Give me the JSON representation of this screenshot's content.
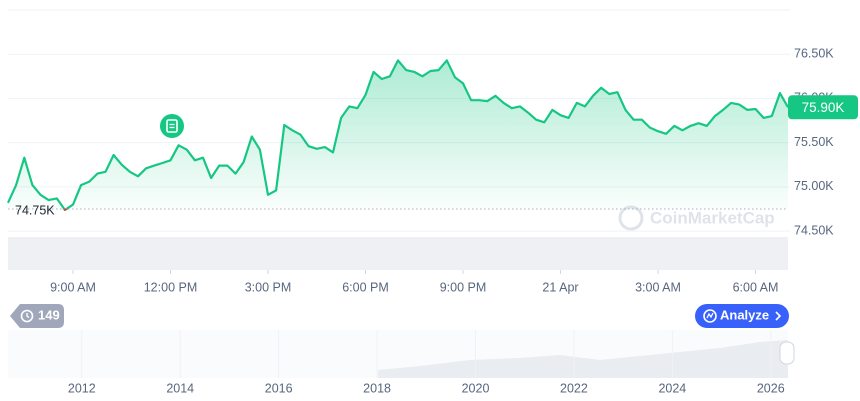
{
  "chart_data": {
    "type": "line",
    "color": "#16c784",
    "negative_color": "#ea3943",
    "grid": true,
    "xlim": [
      7,
      31
    ],
    "xticks": [
      {
        "value": 9,
        "label": "9:00 AM"
      },
      {
        "value": 12,
        "label": "12:00 PM"
      },
      {
        "value": 15,
        "label": "3:00 PM"
      },
      {
        "value": 18,
        "label": "6:00 PM"
      },
      {
        "value": 21,
        "label": "9:00 PM"
      },
      {
        "value": 24,
        "label": "21 Apr"
      },
      {
        "value": 27,
        "label": "3:00 AM"
      },
      {
        "value": 30,
        "label": "6:00 AM"
      }
    ],
    "ylim": [
      74060,
      77000
    ],
    "yticks": [
      {
        "value": 74500,
        "label": "74.50K"
      },
      {
        "value": 75000,
        "label": "75.00K"
      },
      {
        "value": 75500,
        "label": "75.50K"
      },
      {
        "value": 76000,
        "label": "76.00K"
      },
      {
        "value": 76500,
        "label": "76.50K"
      }
    ],
    "x": [
      7,
      7.25,
      7.5,
      7.75,
      8,
      8.25,
      8.5,
      8.75,
      9,
      9.25,
      9.5,
      9.75,
      10,
      10.25,
      10.5,
      10.75,
      11,
      11.25,
      11.5,
      11.75,
      12,
      12.25,
      12.5,
      12.75,
      13,
      13.25,
      13.5,
      13.75,
      14,
      14.25,
      14.5,
      14.75,
      15,
      15.25,
      15.5,
      15.75,
      16,
      16.25,
      16.5,
      16.75,
      17,
      17.25,
      17.5,
      17.75,
      18,
      18.25,
      18.5,
      18.75,
      19,
      19.25,
      19.5,
      19.75,
      20,
      20.25,
      20.5,
      20.75,
      21,
      21.25,
      21.5,
      21.75,
      22,
      22.25,
      22.5,
      22.75,
      23,
      23.25,
      23.5,
      23.75,
      24,
      24.25,
      24.5,
      24.75,
      25,
      25.25,
      25.5,
      25.75,
      26,
      26.25,
      26.5,
      26.75,
      27,
      27.25,
      27.5,
      27.75,
      28,
      28.25,
      28.5,
      28.75,
      29,
      29.25,
      29.5,
      29.75,
      30,
      30.25,
      30.5,
      30.75,
      31
    ],
    "values": [
      74820,
      75020,
      75330,
      75020,
      74910,
      74850,
      74870,
      74740,
      74800,
      75020,
      75060,
      75150,
      75170,
      75360,
      75250,
      75170,
      75120,
      75210,
      75240,
      75270,
      75300,
      75470,
      75420,
      75300,
      75330,
      75100,
      75240,
      75240,
      75150,
      75280,
      75570,
      75420,
      74910,
      74960,
      75700,
      75640,
      75590,
      75460,
      75430,
      75450,
      75390,
      75780,
      75910,
      75890,
      76040,
      76300,
      76220,
      76250,
      76430,
      76320,
      76300,
      76250,
      76310,
      76320,
      76430,
      76240,
      76170,
      75980,
      75980,
      75970,
      76030,
      75950,
      75890,
      75910,
      75840,
      75760,
      75730,
      75870,
      75810,
      75780,
      75950,
      75910,
      76030,
      76120,
      76050,
      76070,
      75870,
      75760,
      75760,
      75670,
      75630,
      75600,
      75690,
      75640,
      75690,
      75720,
      75690,
      75800,
      75870,
      75950,
      75930,
      75870,
      75880,
      75780,
      75800,
      76060,
      75900
    ],
    "reference_line": {
      "value": 74750,
      "label": "74.75K"
    },
    "current_price": {
      "value": 75900,
      "label": "75.90K"
    },
    "watermark": "CoinMarketCap",
    "navigator": {
      "xlim": [
        2010.5,
        2026.35
      ],
      "xticks": [
        2012,
        2014,
        2016,
        2018,
        2020,
        2022,
        2024,
        2026
      ]
    },
    "controls": {
      "history_count": 149,
      "analyze": "Analyze"
    }
  }
}
